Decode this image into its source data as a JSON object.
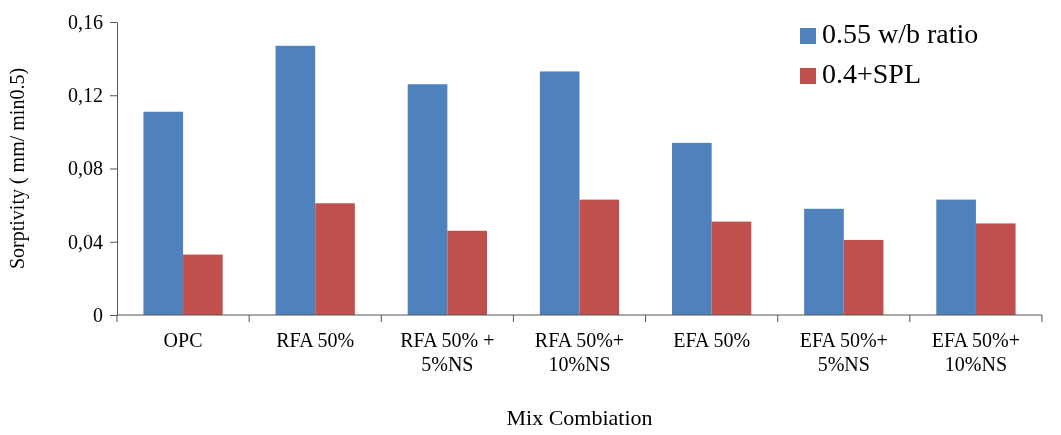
{
  "chart_data": {
    "type": "bar",
    "xlabel": "Mix Combiation",
    "ylabel": "Sorptivity ( mm/ min0.5)",
    "categories": [
      "OPC",
      "RFA 50%",
      "RFA 50% +\n5%NS",
      "RFA 50%+\n10%NS",
      "EFA 50%",
      "EFA 50%+\n5%NS",
      "EFA 50%+\n10%NS"
    ],
    "series": [
      {
        "name": "0.55 w/b ratio",
        "color": "#4f81bd",
        "values": [
          0.111,
          0.147,
          0.126,
          0.133,
          0.094,
          0.058,
          0.063
        ]
      },
      {
        "name": "0.4+SPL",
        "color": "#c0504d",
        "values": [
          0.033,
          0.061,
          0.046,
          0.063,
          0.051,
          0.041,
          0.05
        ]
      }
    ],
    "ylim": [
      0,
      0.16
    ],
    "yticks": [
      0,
      {
        "value": 0.04,
        "label": "0,04"
      },
      {
        "value": 0.08,
        "label": "0,08"
      },
      {
        "value": 0.12,
        "label": "0,12"
      },
      {
        "value": 0.16,
        "label": "0,16"
      }
    ],
    "legend": "top right",
    "grid": false
  }
}
